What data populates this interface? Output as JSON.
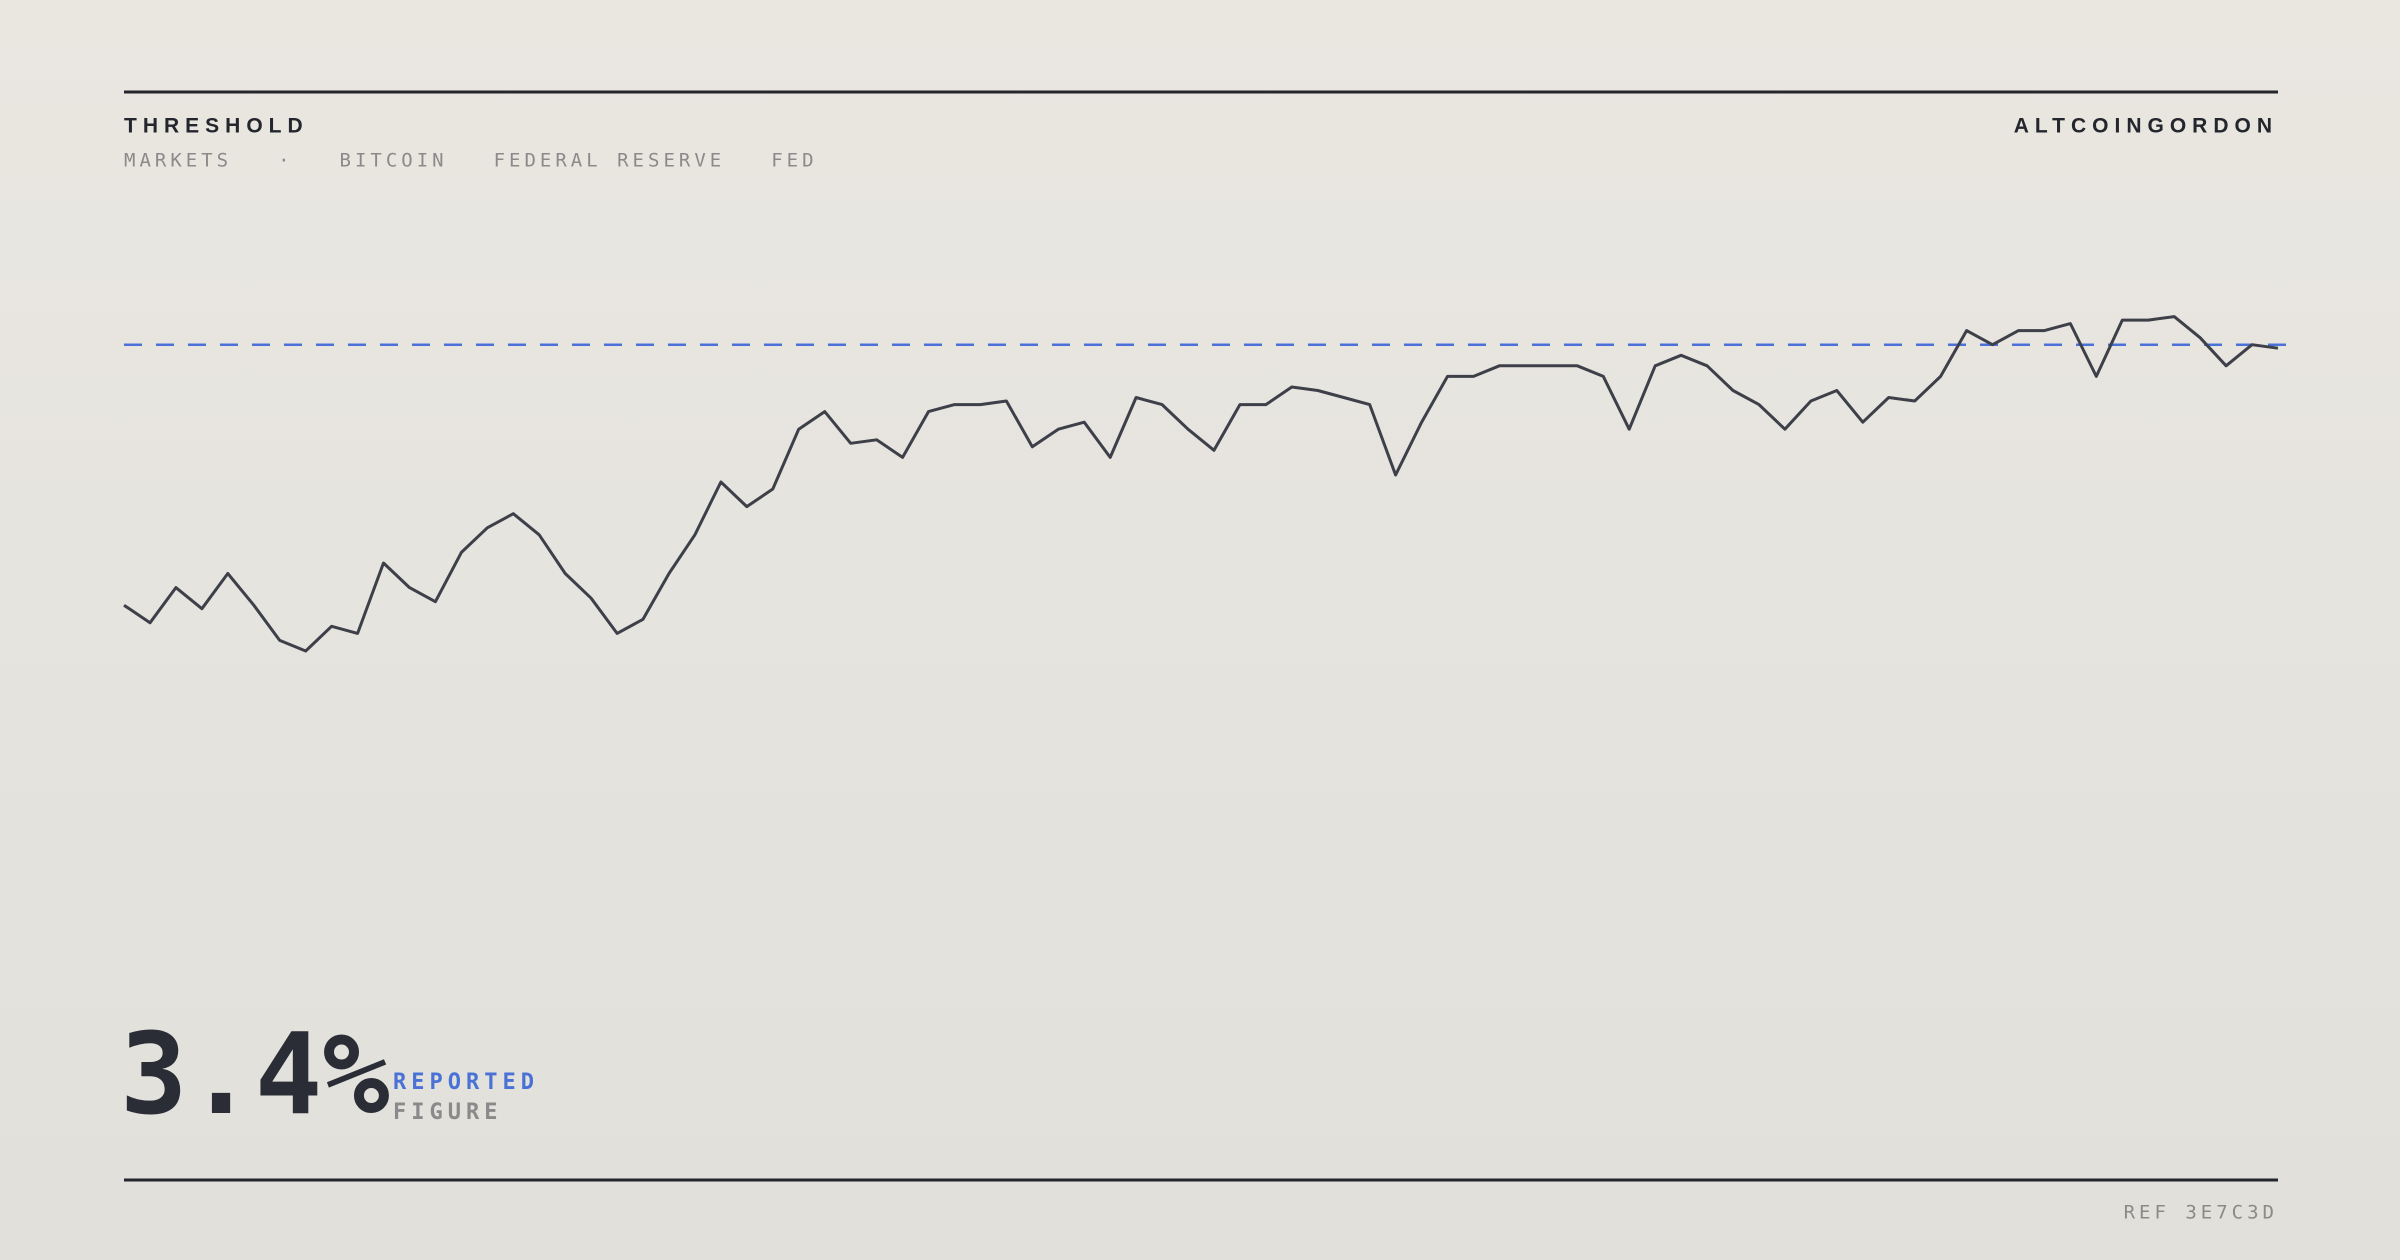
{
  "header": {
    "title": "THRESHOLD",
    "tags": [
      "MARKETS",
      "·",
      "BITCOIN",
      "FEDERAL RESERVE",
      "FED"
    ],
    "brand": "ALTCOINGORDON"
  },
  "chart_data": {
    "type": "line",
    "color": "#3d4049",
    "threshold": 89,
    "threshold_color": "#4a72d6",
    "ylim": [
      0,
      100
    ],
    "values": [
      15,
      10,
      20,
      14,
      24,
      15,
      5,
      2,
      9,
      7,
      27,
      20,
      16,
      30,
      37,
      41,
      35,
      24,
      17,
      7,
      11,
      24,
      35,
      50,
      43,
      48,
      65,
      70,
      61,
      62,
      57,
      70,
      72,
      72,
      73,
      60,
      65,
      67,
      57,
      74,
      72,
      65,
      59,
      72,
      72,
      77,
      76,
      74,
      72,
      52,
      67,
      80,
      80,
      83,
      83,
      83,
      83,
      80,
      65,
      83,
      86,
      83,
      76,
      72,
      65,
      73,
      76,
      67,
      74,
      73,
      80,
      93,
      89,
      93,
      93,
      95,
      80,
      96,
      96,
      97,
      91,
      83,
      89,
      88
    ]
  },
  "figure": {
    "value": "3.4%",
    "label": "REPORTED",
    "sublabel": "FIGURE"
  },
  "footer": {
    "ref": "REF 3E7C3D"
  }
}
